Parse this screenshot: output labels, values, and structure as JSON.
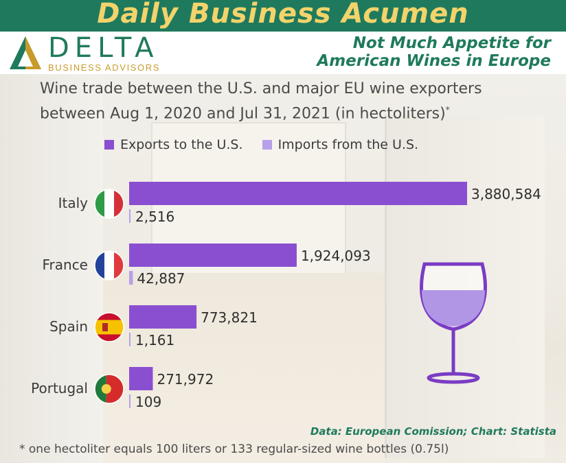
{
  "header": {
    "title": "Daily Business Acumen",
    "logo_name": "DELTA",
    "logo_sub": "BUSINESS ADVISORS",
    "headline_line1": "Not Much Appetite for",
    "headline_line2": "American Wines in Europe"
  },
  "colors": {
    "banner": "#1f7a5d",
    "title_gold": "#f3d36b",
    "exports": "#8a4fd0",
    "imports": "#b7a0ea"
  },
  "footer": {
    "source": "Data: European Comission; Chart: Statista",
    "footnote": "* one hectoliter equals 100 liters or 133 regular-sized wine bottles (0.75l)"
  },
  "chart_data": {
    "type": "bar",
    "orientation": "horizontal",
    "title_line1": "Wine trade between the U.S. and major EU wine exporters",
    "title_line2": "between Aug 1, 2020 and Jul 31, 2021 (in hectoliters)",
    "title_mark": "*",
    "categories": [
      "Italy",
      "France",
      "Spain",
      "Portugal"
    ],
    "category_icons": [
      "italy-flag-icon",
      "france-flag-icon",
      "spain-flag-icon",
      "portugal-flag-icon"
    ],
    "series": [
      {
        "name": "Exports to the U.S.",
        "values": [
          3880584,
          1924093,
          773821,
          271972
        ],
        "labels": [
          "3,880,584",
          "1,924,093",
          "773,821",
          "271,972"
        ],
        "color": "#8a4fd0"
      },
      {
        "name": "Imports from the U.S.",
        "values": [
          2516,
          42887,
          1161,
          109
        ],
        "labels": [
          "2,516",
          "42,887",
          "1,161",
          "109"
        ],
        "color": "#b7a0ea"
      }
    ],
    "legend": "top",
    "grid": false,
    "xlim": [
      0,
      3880584
    ]
  }
}
